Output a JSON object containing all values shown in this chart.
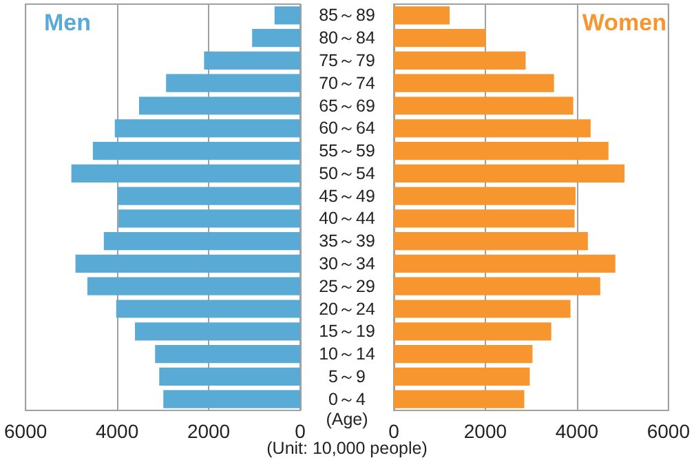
{
  "chart_data": [
    {
      "type": "bar",
      "orientation": "horizontal",
      "categories": [
        "85～89",
        "80～84",
        "75～79",
        "70～74",
        "65～69",
        "60～64",
        "55～59",
        "50～54",
        "45～49",
        "40～44",
        "35～39",
        "30～34",
        "25～29",
        "20～24",
        "15～19",
        "10～14",
        "5～9",
        "0～4"
      ],
      "series": [
        {
          "name": "Men",
          "color": "#5aaad6",
          "values": [
            560,
            1050,
            2100,
            2930,
            3520,
            4050,
            4530,
            5000,
            3990,
            3970,
            4290,
            4910,
            4650,
            4020,
            3610,
            3170,
            3080,
            2990
          ]
        }
      ],
      "xlim": [
        6000,
        0
      ],
      "xticks": [
        6000,
        4000,
        2000,
        0
      ],
      "grid": "x",
      "annotations": [
        "(Age)",
        "(Unit: 10,000 people)"
      ]
    },
    {
      "type": "bar",
      "orientation": "horizontal",
      "categories": [
        null,
        null,
        null,
        null,
        null,
        null,
        null,
        null,
        null,
        null,
        null,
        null,
        null,
        null,
        null,
        null,
        null,
        null
      ],
      "series": [
        {
          "name": "Women",
          "color": "#f7952e",
          "values": [
            1220,
            2010,
            2880,
            3500,
            3920,
            4300,
            4690,
            5040,
            3970,
            3950,
            4240,
            4840,
            4510,
            3860,
            3440,
            3030,
            2970,
            2850
          ]
        }
      ],
      "xlim": [
        0,
        6000
      ],
      "xticks": [
        0,
        2000,
        4000,
        6000
      ],
      "grid": "x"
    }
  ]
}
